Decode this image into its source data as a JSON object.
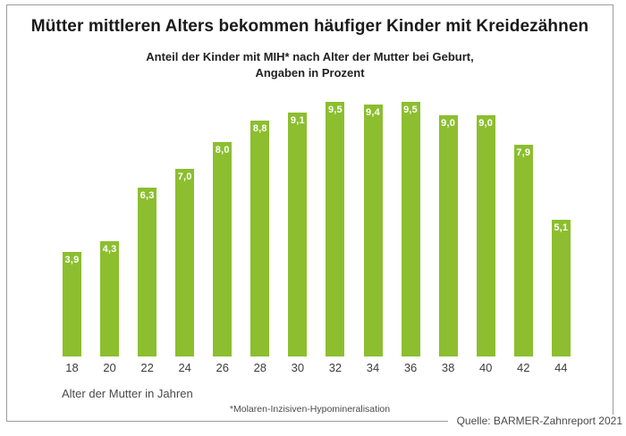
{
  "chart_data": {
    "type": "bar",
    "title": "Mütter mittleren Alters bekommen häufiger Kinder mit Kreidezähnen",
    "subtitle_lines": [
      "Anteil der Kinder mit MIH* nach Alter der Mutter bei Geburt,",
      "Angaben in Prozent"
    ],
    "categories": [
      "18",
      "20",
      "22",
      "24",
      "26",
      "28",
      "30",
      "32",
      "34",
      "36",
      "38",
      "40",
      "42",
      "44"
    ],
    "values": [
      3.9,
      4.3,
      6.3,
      7.0,
      8.0,
      8.8,
      9.1,
      9.5,
      9.4,
      9.5,
      9.0,
      9.0,
      7.9,
      5.1
    ],
    "value_labels": [
      "3,9",
      "4,3",
      "6,3",
      "7,0",
      "8,0",
      "8,8",
      "9,1",
      "9,5",
      "9,4",
      "9,5",
      "9,0",
      "9,0",
      "7,9",
      "5,1"
    ],
    "xlabel": "Alter der Mutter in Jahren",
    "ylabel": "",
    "unit": "Prozent",
    "ylim": [
      0,
      9.5
    ],
    "grid": false,
    "legend": false,
    "footnote": "*Molaren-Inzisiven-Hypomineralisation",
    "source": "Quelle: BARMER-Zahnreport 2021",
    "colors": {
      "bar": "#8CBE2F",
      "value_label": "#FFFFFF",
      "frame_border": "#9C9C9C",
      "title_text": "#1A1A1A",
      "axis_text": "#3D3D3D",
      "muted_text": "#4A4A4A"
    }
  }
}
